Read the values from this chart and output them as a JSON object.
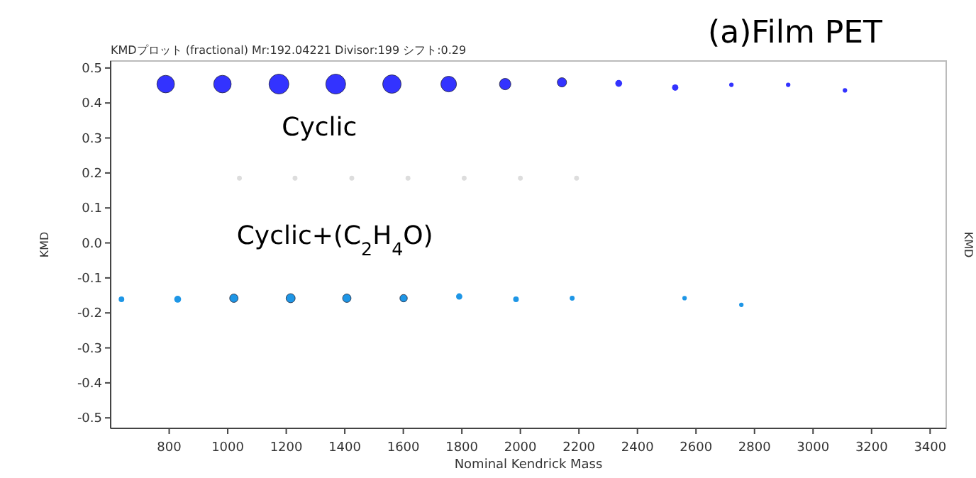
{
  "chart_data": {
    "type": "bubble",
    "title": "(a)Film PET",
    "subtitle": "KMDプロット (fractional) Mr:192.04221 Divisor:199 シフト:0.29",
    "xlabel": "Nominal Kendrick Mass",
    "ylabel": "KMD",
    "y2label": "KMD",
    "xlim": [
      600,
      3455
    ],
    "xticks": [
      800,
      1000,
      1200,
      1400,
      1600,
      1800,
      2000,
      2200,
      2400,
      2600,
      2800,
      3000,
      3200,
      3400
    ],
    "ylim": [
      -0.53,
      0.52
    ],
    "yticks": [
      -0.5,
      -0.4,
      -0.3,
      -0.2,
      -0.1,
      {
        "value": 0,
        "label": "0.0"
      },
      0.1,
      0.2,
      0.3,
      0.4,
      0.5
    ],
    "grid": false,
    "series": [
      {
        "color": "#dddddd",
        "x": [
          1040,
          1230,
          1424,
          1616,
          1808,
          2000,
          2192
        ],
        "values": [
          0.185,
          0.185,
          0.185,
          0.185,
          0.185,
          0.185,
          0.185
        ],
        "sizes": [
          0.06,
          0.06,
          0.06,
          0.06,
          0.06,
          0.06,
          0.06
        ]
      },
      {
        "name": "Cyclic",
        "color": "#3333ff",
        "x": [
          788,
          982,
          1175,
          1369,
          1561,
          1755,
          1948,
          2142,
          2336,
          2529,
          2721,
          2915,
          3109
        ],
        "values": [
          0.454,
          0.454,
          0.454,
          0.454,
          0.454,
          0.454,
          0.454,
          0.459,
          0.456,
          0.444,
          0.452,
          0.452,
          0.436
        ],
        "sizes": [
          0.78,
          0.78,
          1,
          1,
          0.86,
          0.62,
          0.33,
          0.22,
          0.12,
          0.1,
          0.05,
          0.05,
          0.05
        ]
      },
      {
        "name": "Cyclic+(C$_{2}$H$_{4}$O)",
        "color": "#1e96e6",
        "x": [
          637,
          829,
          1021,
          1215,
          1407,
          1601,
          1791,
          1985,
          2177,
          2561,
          2755
        ],
        "values": [
          -0.161,
          -0.161,
          -0.158,
          -0.158,
          -0.158,
          -0.158,
          -0.153,
          -0.161,
          -0.158,
          -0.158,
          -0.177
        ],
        "sizes": [
          0.08,
          0.12,
          0.18,
          0.21,
          0.18,
          0.14,
          0.1,
          0.08,
          0.06,
          0.05,
          0.05
        ]
      }
    ]
  }
}
